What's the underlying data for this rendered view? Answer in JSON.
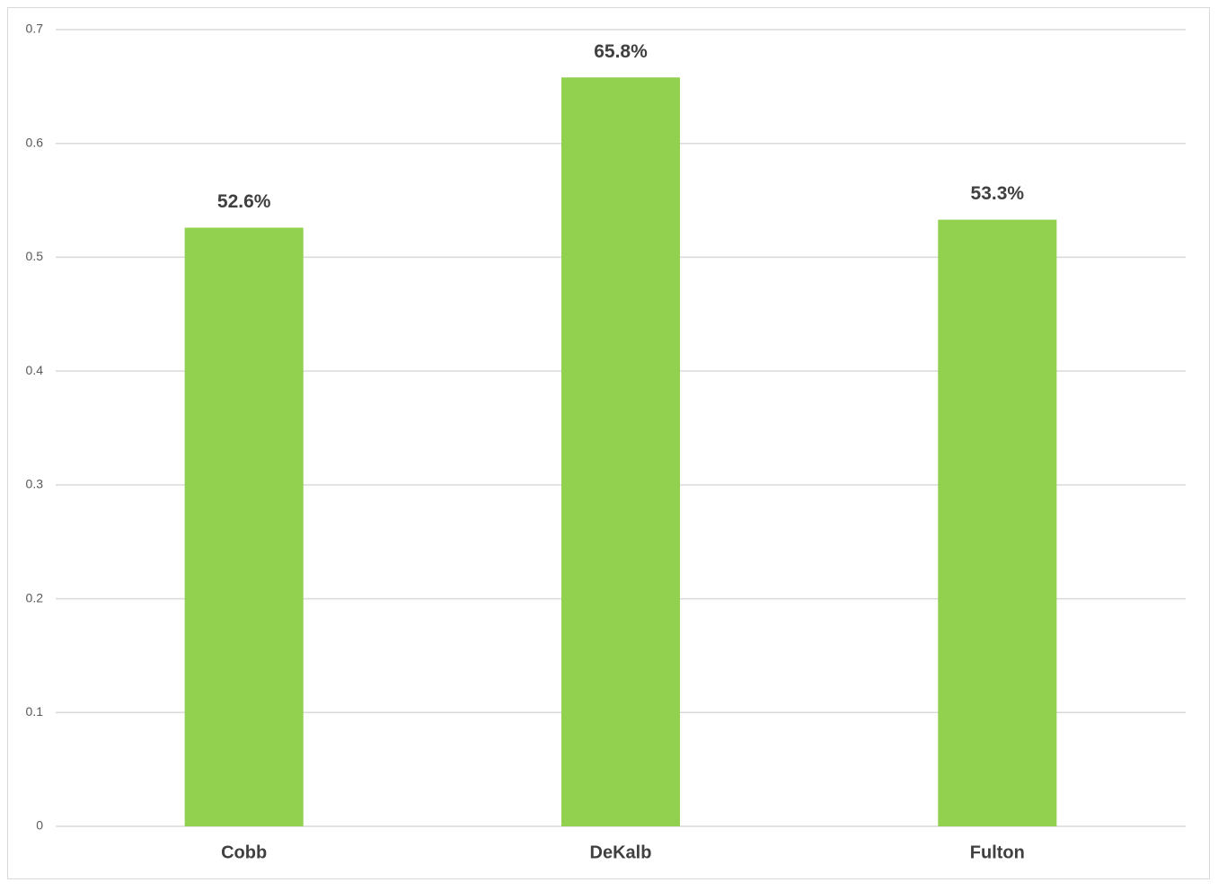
{
  "chart_data": {
    "type": "bar",
    "categories": [
      "Cobb",
      "DeKalb",
      "Fulton"
    ],
    "values": [
      0.526,
      0.658,
      0.533
    ],
    "value_labels": [
      "52.6%",
      "65.8%",
      "53.3%"
    ],
    "color": "#92d050",
    "ylim": [
      0,
      0.7
    ],
    "yticks": [
      0,
      0.1,
      0.2,
      0.3,
      0.4,
      0.5,
      0.6,
      0.7
    ],
    "grid": true
  }
}
